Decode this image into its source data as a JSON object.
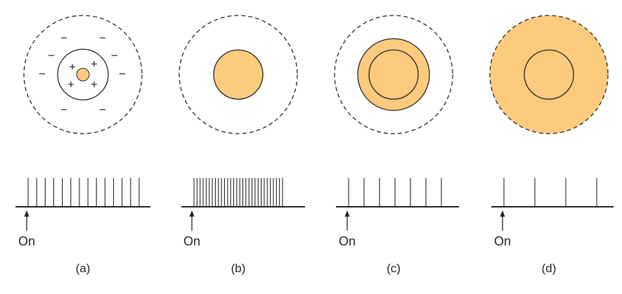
{
  "colors": {
    "light_fill": "#FCCB7E",
    "stroke": "#222222",
    "background": "#FFFFFF"
  },
  "panels": [
    {
      "caption": "(a)",
      "on_label": "On",
      "center_signs": [
        "+",
        "+",
        "+",
        "+"
      ],
      "surround_signs": [
        "−",
        "−",
        "−",
        "−",
        "−",
        "−",
        "−",
        "−"
      ],
      "light_pattern": "small spot in center",
      "spike_count": 14
    },
    {
      "caption": "(b)",
      "on_label": "On",
      "light_pattern": "spot covers entire center",
      "spike_count": 30
    },
    {
      "caption": "(c)",
      "on_label": "On",
      "light_pattern": "spot covers center and part of surround",
      "spike_count": 7
    },
    {
      "caption": "(d)",
      "on_label": "On",
      "light_pattern": "light covers entire receptive field",
      "spike_count": 4
    }
  ]
}
